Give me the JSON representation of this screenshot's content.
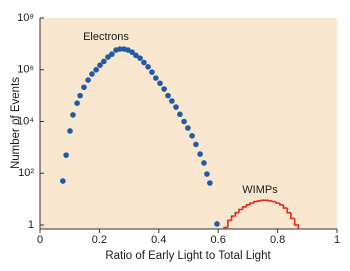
{
  "chart_data": {
    "type": "scatter",
    "x_label": "Ratio of Early Light to Total Light",
    "y_label": "Number of Events",
    "xlim": [
      0,
      1
    ],
    "xticks": [
      0,
      0.2,
      0.4,
      0.6,
      0.8,
      1
    ],
    "ylim": [
      0.7,
      100000000
    ],
    "yticks": [
      1,
      {
        "value": 100,
        "label": "10²"
      },
      {
        "value": 10000,
        "label": "10⁴"
      },
      {
        "value": 1000000,
        "label": "10⁶"
      },
      {
        "value": 100000000,
        "label": "10⁸"
      }
    ],
    "ylog": true,
    "grid": false,
    "background": "#f8e6cf",
    "series": [
      {
        "name": "Electrons",
        "type": "scatter",
        "color": "#1f5aa6",
        "x": [
          0.077,
          0.088,
          0.101,
          0.111,
          0.125,
          0.135,
          0.148,
          0.162,
          0.175,
          0.189,
          0.202,
          0.215,
          0.229,
          0.242,
          0.256,
          0.269,
          0.283,
          0.296,
          0.31,
          0.323,
          0.337,
          0.35,
          0.364,
          0.377,
          0.39,
          0.404,
          0.418,
          0.431,
          0.444,
          0.458,
          0.471,
          0.485,
          0.498,
          0.512,
          0.525,
          0.539,
          0.552,
          0.562,
          0.572,
          0.596
        ],
        "values": [
          50,
          500,
          4300,
          18000,
          51000,
          100000,
          210000,
          400000,
          680000,
          1000000,
          1500000,
          2100000,
          3100000,
          4000000,
          5800000,
          6300000,
          6300000,
          5800000,
          4800000,
          3600000,
          2800000,
          1900000,
          1300000,
          810000,
          480000,
          300000,
          180000,
          100000,
          62000,
          36000,
          19000,
          10000,
          5600,
          2800,
          1300,
          550,
          250,
          93,
          42,
          1.1
        ]
      },
      {
        "name": "WIMPs",
        "type": "histogram",
        "color": "#e0281c",
        "bins": [
          0.62,
          0.6325,
          0.645,
          0.6575,
          0.67,
          0.6825,
          0.695,
          0.7075,
          0.72,
          0.7325,
          0.745,
          0.7575,
          0.77,
          0.7825,
          0.795,
          0.8075,
          0.82,
          0.8325,
          0.845,
          0.8575,
          0.87
        ],
        "values": [
          0.8,
          1.5,
          2.2,
          3,
          4,
          5,
          6,
          7,
          8,
          8.5,
          9,
          9,
          8.5,
          8,
          7,
          6,
          4.5,
          3,
          1.8,
          1
        ]
      }
    ]
  }
}
